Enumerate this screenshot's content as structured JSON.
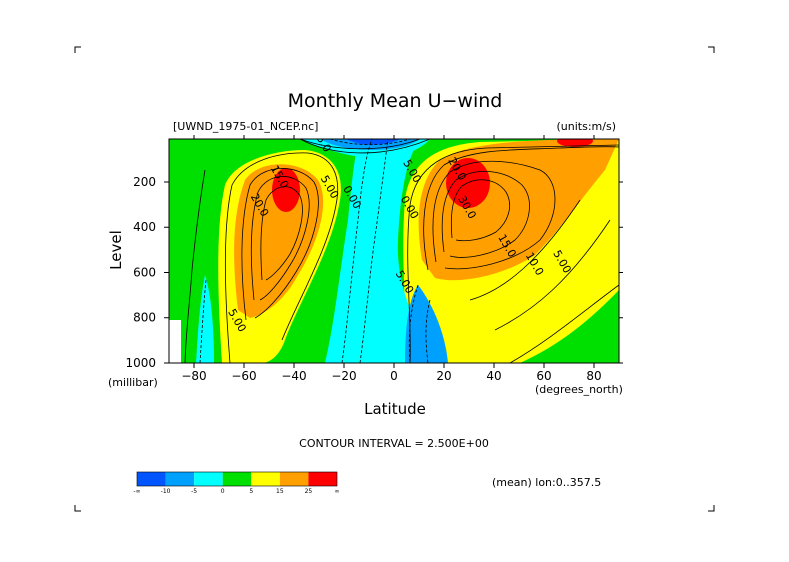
{
  "chart_data": {
    "type": "contour",
    "title": "Monthly Mean U−wind",
    "file_label": "[UWND_1975-01_NCEP.nc]",
    "units_label": "(units:m/s)",
    "xlabel": "Latitude",
    "ylabel": "Level",
    "x_units": "(degrees_north)",
    "y_units": "(millibar)",
    "x_ticks": [
      "−80",
      "−60",
      "−40",
      "−20",
      "0",
      "20",
      "40",
      "60",
      "80"
    ],
    "x_tick_values": [
      -80,
      -60,
      -40,
      -20,
      0,
      20,
      40,
      60,
      80
    ],
    "y_ticks": [
      "200",
      "400",
      "600",
      "800",
      "1000"
    ],
    "y_tick_values": [
      200,
      400,
      600,
      800,
      1000
    ],
    "xlim": [
      -90,
      90
    ],
    "ylim": [
      1000,
      10
    ],
    "contour_interval_text": "CONTOUR INTERVAL = 2.500E+00",
    "contour_interval": 2.5,
    "mean_label": "(mean) lon:0..357.5",
    "contour_labels": [
      {
        "text": "15.0",
        "lat": -47,
        "lev": 185
      },
      {
        "text": "20.0",
        "lat": -55,
        "lev": 310
      },
      {
        "text": "5.00",
        "lat": -27,
        "lev": 230
      },
      {
        "text": "0.00",
        "lat": -18,
        "lev": 275
      },
      {
        "text": "5.00",
        "lat": -64,
        "lev": 820
      },
      {
        "text": "15.0",
        "lat": -30,
        "lev": 25
      },
      {
        "text": "20.0",
        "lat": 24,
        "lev": 150
      },
      {
        "text": "5.00",
        "lat": 6,
        "lev": 160
      },
      {
        "text": "0.00",
        "lat": 5,
        "lev": 320
      },
      {
        "text": "30.0",
        "lat": 28,
        "lev": 320
      },
      {
        "text": "15.0",
        "lat": 44,
        "lev": 490
      },
      {
        "text": "10.0",
        "lat": 55,
        "lev": 570
      },
      {
        "text": "5.00",
        "lat": 66,
        "lev": 560
      },
      {
        "text": "5.00",
        "lat": 3,
        "lev": 650
      }
    ],
    "colorbar": {
      "colors": [
        "#0055ff",
        "#00a0ff",
        "#00ffff",
        "#00e000",
        "#ffff00",
        "#ffa000",
        "#ff0000"
      ],
      "labels": [
        "-∞",
        "-10",
        "-5",
        "0",
        "5",
        "15",
        "25",
        "∞"
      ]
    }
  }
}
